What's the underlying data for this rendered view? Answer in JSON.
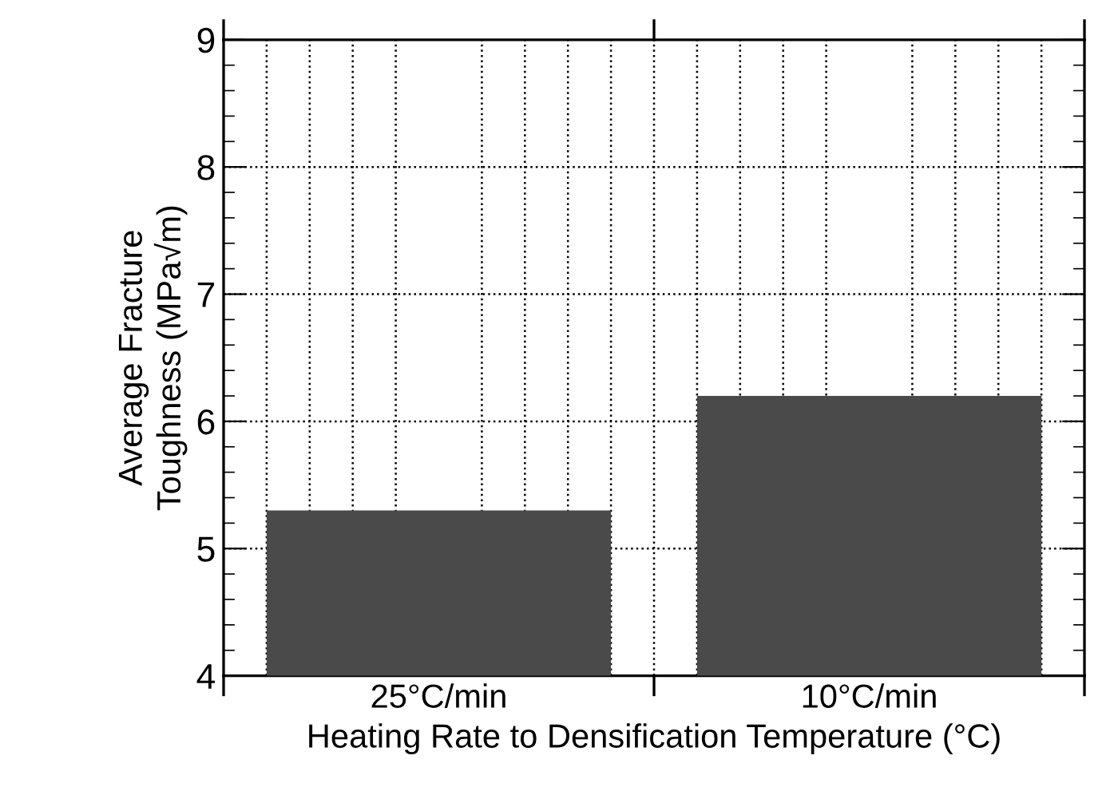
{
  "chart_data": {
    "type": "bar",
    "categories": [
      "25°C/min",
      "10°C/min"
    ],
    "values": [
      5.3,
      6.2
    ],
    "color": "#4a4a4a",
    "xlabel": "Heating Rate to Densification Temperature (°C)",
    "ylabel": "Average Fracture\nToughness (MPa√m)",
    "ylim": [
      4,
      9
    ],
    "yticks": [
      4,
      5,
      6,
      7,
      8,
      9
    ],
    "grid": true
  }
}
